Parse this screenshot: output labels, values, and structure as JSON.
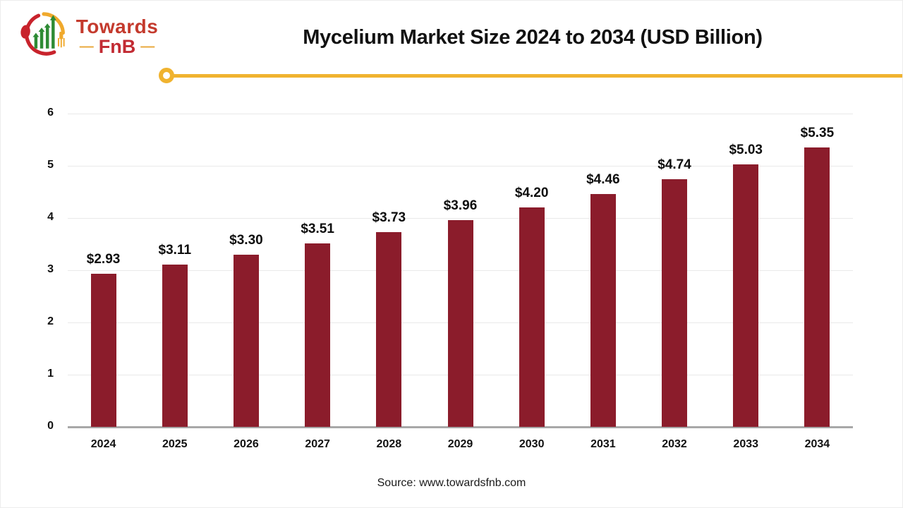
{
  "header": {
    "brand": {
      "line1": "Towards",
      "line2": "FnB",
      "dash": "—"
    },
    "title": "Mycelium Market Size 2024 to 2034 (USD Billion)"
  },
  "colors": {
    "bar": "#8b1c2b",
    "accent_yellow": "#f0b32f",
    "brand_red": "#c43a2d",
    "brand_dark_red": "#c22b33",
    "logo_green": "#2e8b34",
    "gridline": "#e9e9e9",
    "axis_line": "#a8a8a8"
  },
  "chart_data": {
    "type": "bar",
    "title": "Mycelium Market Size 2024 to 2034 (USD Billion)",
    "unit": "USD Billion",
    "categories": [
      "2024",
      "2025",
      "2026",
      "2027",
      "2028",
      "2029",
      "2030",
      "2031",
      "2032",
      "2033",
      "2034"
    ],
    "values": [
      2.93,
      3.11,
      3.3,
      3.51,
      3.73,
      3.96,
      4.2,
      4.46,
      4.74,
      5.03,
      5.35
    ],
    "data_labels": [
      "$2.93",
      "$3.11",
      "$3.30",
      "$3.51",
      "$3.73",
      "$3.96",
      "$4.20",
      "$4.46",
      "$4.74",
      "$5.03",
      "$5.35"
    ],
    "ylim": [
      0,
      6
    ],
    "yticks": [
      0,
      1,
      2,
      3,
      4,
      5,
      6
    ],
    "grid": true,
    "legend": false,
    "bar_color": "#8b1c2b"
  },
  "footer": {
    "source": "Source: www.towardsfnb.com"
  }
}
